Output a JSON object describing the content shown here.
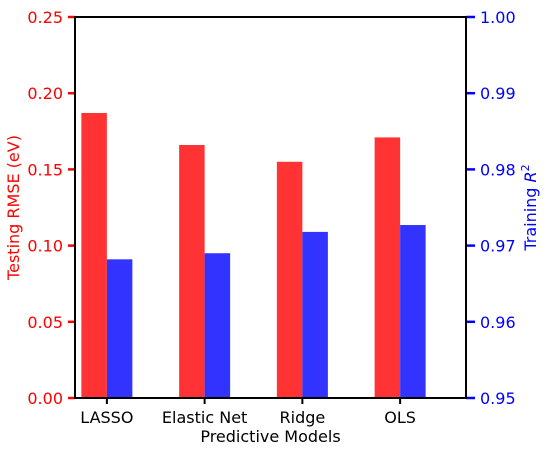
{
  "chart_data": {
    "type": "bar",
    "xlabel": "Predictive Models",
    "categories": [
      "LASSO",
      "Elastic Net",
      "Ridge",
      "OLS"
    ],
    "y_left": {
      "label": "Testing RMSE (eV)",
      "ylim": [
        0.0,
        0.25
      ],
      "ticks": [
        0.0,
        0.05,
        0.1,
        0.15,
        0.2,
        0.25
      ],
      "tick_labels": [
        "0.00",
        "0.05",
        "0.10",
        "0.15",
        "0.20",
        "0.25"
      ],
      "color": "#ff0000"
    },
    "y_right": {
      "label_main": "Training ",
      "label_italic": "R",
      "label_sup": "2",
      "ylim": [
        0.95,
        1.0
      ],
      "ticks": [
        0.95,
        0.96,
        0.97,
        0.98,
        0.99,
        1.0
      ],
      "tick_labels": [
        "0.95",
        "0.96",
        "0.97",
        "0.98",
        "0.99",
        "1.00"
      ],
      "color": "#0000ff"
    },
    "series": [
      {
        "axis": "left",
        "color": "#ff3333",
        "values": [
          0.187,
          0.166,
          0.155,
          0.171
        ]
      },
      {
        "axis": "right",
        "color": "#3333ff",
        "values": [
          0.9682,
          0.969,
          0.9718,
          0.9727
        ]
      }
    ],
    "grid": false,
    "legend": "none"
  }
}
